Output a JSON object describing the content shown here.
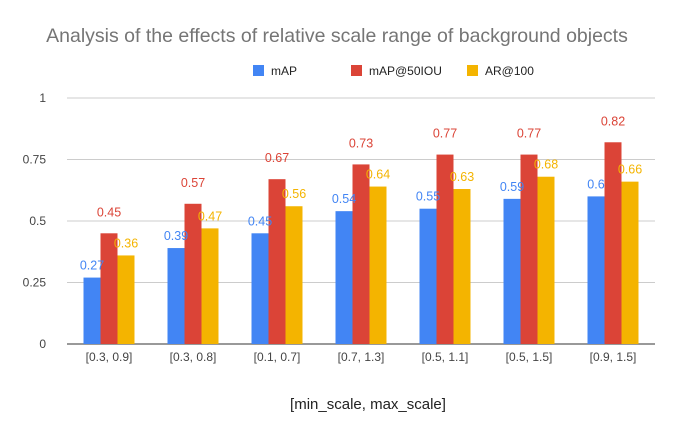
{
  "chart_data": {
    "type": "bar",
    "title": "Analysis of the effects of relative scale range of background objects",
    "xlabel": "[min_scale, max_scale]",
    "ylabel": "",
    "ylim": [
      0,
      1
    ],
    "yticks": [
      "0",
      "0.25",
      "0.5",
      "0.75",
      "1"
    ],
    "ytick_values": [
      0,
      0.25,
      0.5,
      0.75,
      1
    ],
    "grid": true,
    "legend_position": "top",
    "categories": [
      "[0.3, 0.9]",
      "[0.3, 0.8]",
      "[0.1, 0.7]",
      "[0.7, 1.3]",
      "[0.5, 1.1]",
      "[0.5, 1.5]",
      "[0.9, 1.5]"
    ],
    "series": [
      {
        "name": "mAP",
        "color": "#4285f4",
        "values": [
          0.27,
          0.39,
          0.45,
          0.54,
          0.55,
          0.59,
          0.6
        ],
        "labels": [
          "0.27",
          "0.39",
          "0.45",
          "0.54",
          "0.55",
          "0.59",
          "0.6"
        ]
      },
      {
        "name": "mAP@50IOU",
        "color": "#db4437",
        "values": [
          0.45,
          0.57,
          0.67,
          0.73,
          0.77,
          0.77,
          0.82
        ],
        "labels": [
          "0.45",
          "0.57",
          "0.67",
          "0.73",
          "0.77",
          "0.77",
          "0.82"
        ]
      },
      {
        "name": "AR@100",
        "color": "#f4b400",
        "values": [
          0.36,
          0.47,
          0.56,
          0.64,
          0.63,
          0.68,
          0.66
        ],
        "labels": [
          "0.36",
          "0.47",
          "0.56",
          "0.64",
          "0.63",
          "0.68",
          "0.66"
        ]
      }
    ]
  }
}
